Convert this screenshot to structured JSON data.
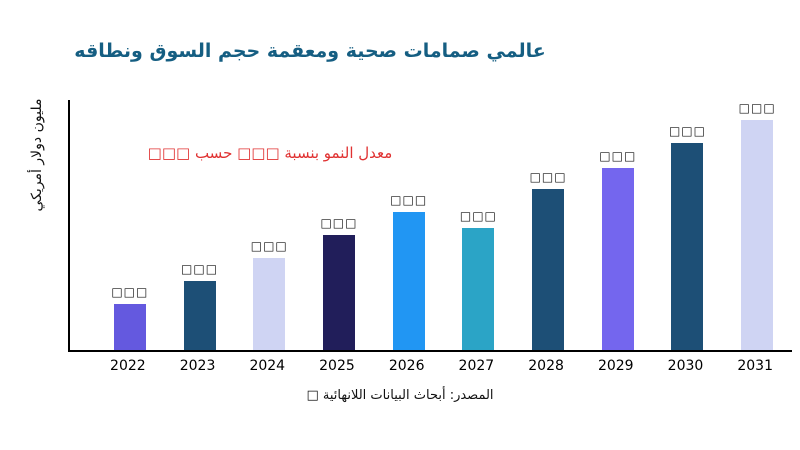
{
  "page": {
    "background": "#ffffff",
    "axis_color": "#000000"
  },
  "chart_data": {
    "type": "bar",
    "title": "عالمي صمامات صحية ومعقمة حجم السوق ونطاقه",
    "title_color": "#155e82",
    "ylabel": "مليون دولار أمريكي",
    "annotation": {
      "text": "معدل النمو بنسبة □□□ حسب □□□",
      "color": "#e03131"
    },
    "source": "المصدر: أبحاث البيانات اللانهائية □",
    "categories": [
      "2022",
      "2023",
      "2024",
      "2025",
      "2026",
      "2027",
      "2028",
      "2029",
      "2030",
      "2031"
    ],
    "values": [
      20,
      30,
      40,
      50,
      60,
      53,
      70,
      79,
      90,
      100
    ],
    "bar_labels": [
      "□□□",
      "□□□",
      "□□□",
      "□□□",
      "□□□",
      "□□□",
      "□□□",
      "□□□",
      "□□□",
      "□□□"
    ],
    "bar_colors": [
      "#6459df",
      "#1d4f76",
      "#cfd4f3",
      "#211e5a",
      "#2196f3",
      "#2ba4c6",
      "#1d4f76",
      "#7466ee",
      "#1d4f76",
      "#cfd4f3"
    ],
    "ylim": [
      0,
      100
    ],
    "grid": false,
    "legend": false
  }
}
